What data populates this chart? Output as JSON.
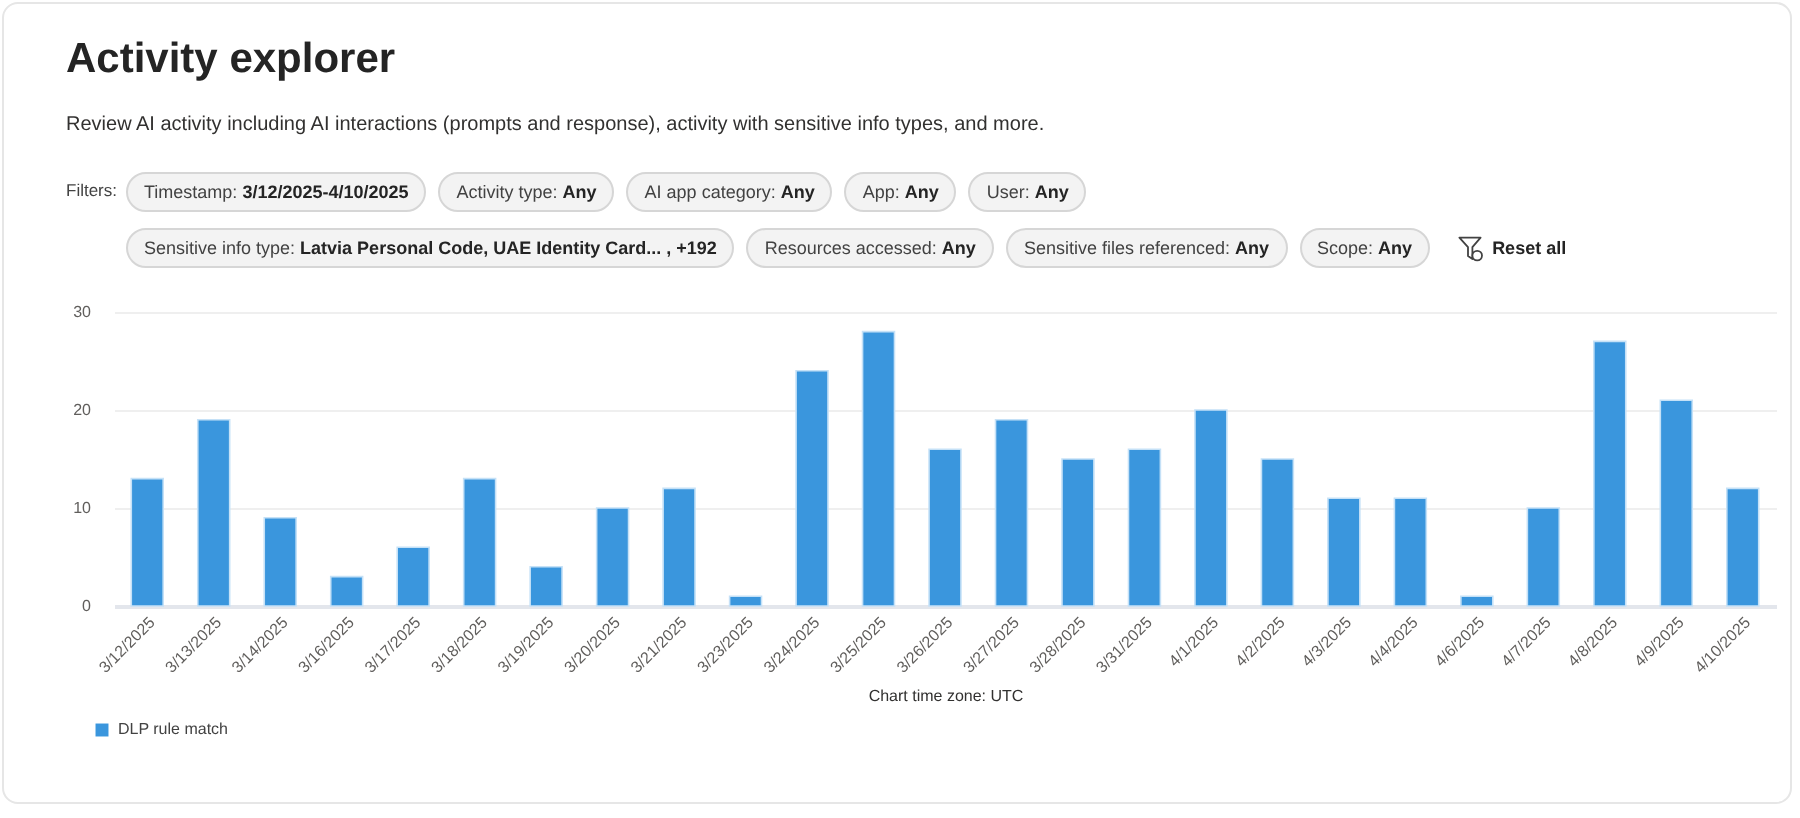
{
  "chart_data": {
    "type": "bar",
    "title": "Activity explorer",
    "subtitle": "Review AI activity including AI interactions (prompts and response), activity with sensitive info types, and more.",
    "xlabel": "Chart time zone: UTC",
    "annotations": [
      "Filters:",
      "Timestamp: 3/12/2025-4/10/2025",
      "Activity type: Any",
      "AI app category: Any",
      "App: Any",
      "User: Any",
      "Sensitive info type: Latvia Personal Code, UAE Identity Card... , +192",
      "Resources accessed: Any",
      "Sensitive files referenced: Any",
      "Scope: Any",
      "Reset all"
    ],
    "categories": [
      "3/12/2025",
      "3/13/2025",
      "3/14/2025",
      "3/16/2025",
      "3/17/2025",
      "3/18/2025",
      "3/19/2025",
      "3/20/2025",
      "3/21/2025",
      "3/23/2025",
      "3/24/2025",
      "3/25/2025",
      "3/26/2025",
      "3/27/2025",
      "3/28/2025",
      "3/31/2025",
      "4/1/2025",
      "4/2/2025",
      "4/3/2025",
      "4/4/2025",
      "4/6/2025",
      "4/7/2025",
      "4/8/2025",
      "4/9/2025",
      "4/10/2025"
    ],
    "series": [
      {
        "name": "DLP rule match",
        "color": "#3a96dd",
        "values": [
          13,
          19,
          9,
          3,
          6,
          13,
          4,
          10,
          12,
          1,
          24,
          28,
          16,
          19,
          15,
          16,
          20,
          15,
          11,
          11,
          1,
          10,
          27,
          21,
          12
        ]
      }
    ],
    "ylim": [
      0,
      30
    ],
    "yticks": [
      0,
      10,
      20,
      30
    ],
    "grid": "y",
    "legend": "bottom left"
  }
}
